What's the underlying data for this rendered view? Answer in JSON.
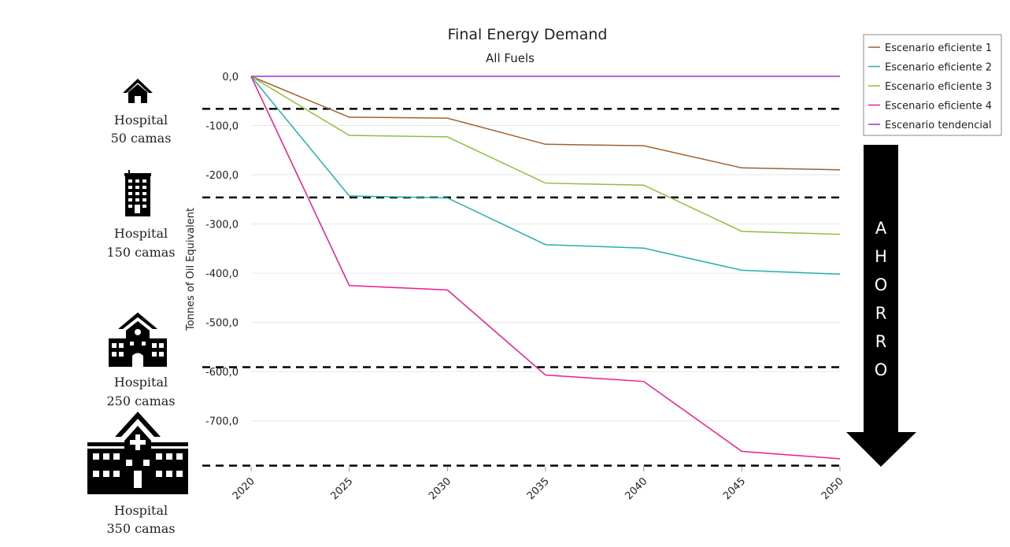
{
  "chart_data": {
    "type": "line",
    "title": "Final Energy Demand",
    "subtitle": "All Fuels",
    "ylabel": "Tonnes of Oil Equivalent",
    "xlabel": "",
    "categories": [
      "2020",
      "2025",
      "2030",
      "2035",
      "2040",
      "2045",
      "2050"
    ],
    "ylim": [
      -800,
      0
    ],
    "yticks": [
      0,
      -100,
      -200,
      -300,
      -400,
      -500,
      -600,
      -700
    ],
    "ytick_labels": [
      "0,0",
      "-100,0",
      "-200,0",
      "-300,0",
      "-400,0",
      "-500,0",
      "-600,0",
      "-700,0"
    ],
    "grid": true,
    "legend_position": "top-right",
    "series": [
      {
        "name": "Escenario eficiente 1",
        "color": "#a0612e",
        "values": [
          0,
          -83,
          -85,
          -138,
          -141,
          -186,
          -190
        ]
      },
      {
        "name": "Escenario eficiente 2",
        "color": "#27aeb0",
        "values": [
          0,
          -243,
          -247,
          -342,
          -349,
          -394,
          -402
        ]
      },
      {
        "name": "Escenario eficiente 3",
        "color": "#8fbe3a",
        "values": [
          0,
          -120,
          -123,
          -217,
          -221,
          -315,
          -321
        ]
      },
      {
        "name": "Escenario eficiente 4",
        "color": "#ec1c8a",
        "values": [
          0,
          -425,
          -434,
          -607,
          -620,
          -762,
          -777
        ]
      },
      {
        "name": "Escenario tendencial",
        "color": "#9b30e0",
        "values": [
          0,
          0,
          0,
          0,
          0,
          0,
          0
        ]
      }
    ],
    "thresholds": [
      -66,
      -246,
      -591,
      -791
    ]
  },
  "hospitals": [
    {
      "label": "Hospital",
      "beds": "50 camas",
      "icon": "house-icon"
    },
    {
      "label": "Hospital",
      "beds": "150 camas",
      "icon": "building-icon"
    },
    {
      "label": "Hospital",
      "beds": "250 camas",
      "icon": "school-building-icon"
    },
    {
      "label": "Hospital",
      "beds": "350 camas",
      "icon": "hospital-icon"
    }
  ],
  "arrow": {
    "letters": [
      "A",
      "H",
      "O",
      "R",
      "R",
      "O"
    ]
  }
}
